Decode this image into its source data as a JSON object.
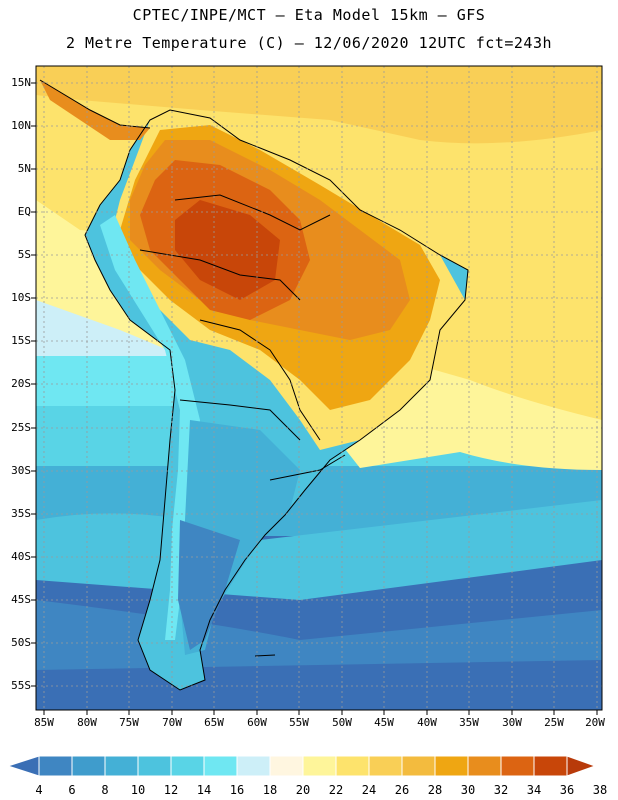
{
  "header": {
    "line1": "CPTEC/INPE/MCT –  Eta Model 15km – GFS",
    "line2": "2 Metre Temperature (C) – 12/06/2020 12UTC fct=243h"
  },
  "lat_labels": [
    "15N",
    "10N",
    "5N",
    "EQ",
    "5S",
    "10S",
    "15S",
    "20S",
    "25S",
    "30S",
    "35S",
    "40S",
    "45S",
    "50S",
    "55S"
  ],
  "lon_labels": [
    "85W",
    "80W",
    "75W",
    "70W",
    "65W",
    "60W",
    "55W",
    "50W",
    "45W",
    "40W",
    "35W",
    "30W",
    "25W",
    "20W"
  ],
  "colorbar": {
    "labels": [
      "4",
      "6",
      "8",
      "10",
      "12",
      "14",
      "16",
      "18",
      "20",
      "22",
      "24",
      "26",
      "28",
      "30",
      "32",
      "34",
      "36",
      "38"
    ],
    "colors": [
      "#3a6fb5",
      "#3f86c2",
      "#3f9ccc",
      "#44b0d6",
      "#4dc3de",
      "#59d4e6",
      "#6fe7f2",
      "#cdeff8",
      "#fff6e0",
      "#fef59a",
      "#fde36c",
      "#f9cf56",
      "#f3bb3e",
      "#efa612",
      "#e88d1d",
      "#dc6412",
      "#c84609",
      "#b83a0a"
    ]
  }
}
